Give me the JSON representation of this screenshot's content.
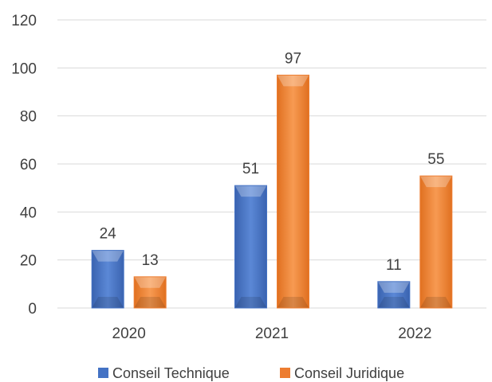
{
  "chart_data": {
    "type": "bar",
    "categories": [
      "2020",
      "2021",
      "2022"
    ],
    "series": [
      {
        "name": "Conseil Technique",
        "values": [
          24,
          51,
          11
        ],
        "color": "#4472c4"
      },
      {
        "name": "Conseil Juridique",
        "values": [
          13,
          97,
          55
        ],
        "color": "#ed7d31"
      }
    ],
    "title": "",
    "xlabel": "",
    "ylabel": "",
    "ylim": [
      0,
      120
    ],
    "yticks": [
      0,
      20,
      40,
      60,
      80,
      100,
      120
    ],
    "grid": true,
    "legend_position": "bottom"
  }
}
